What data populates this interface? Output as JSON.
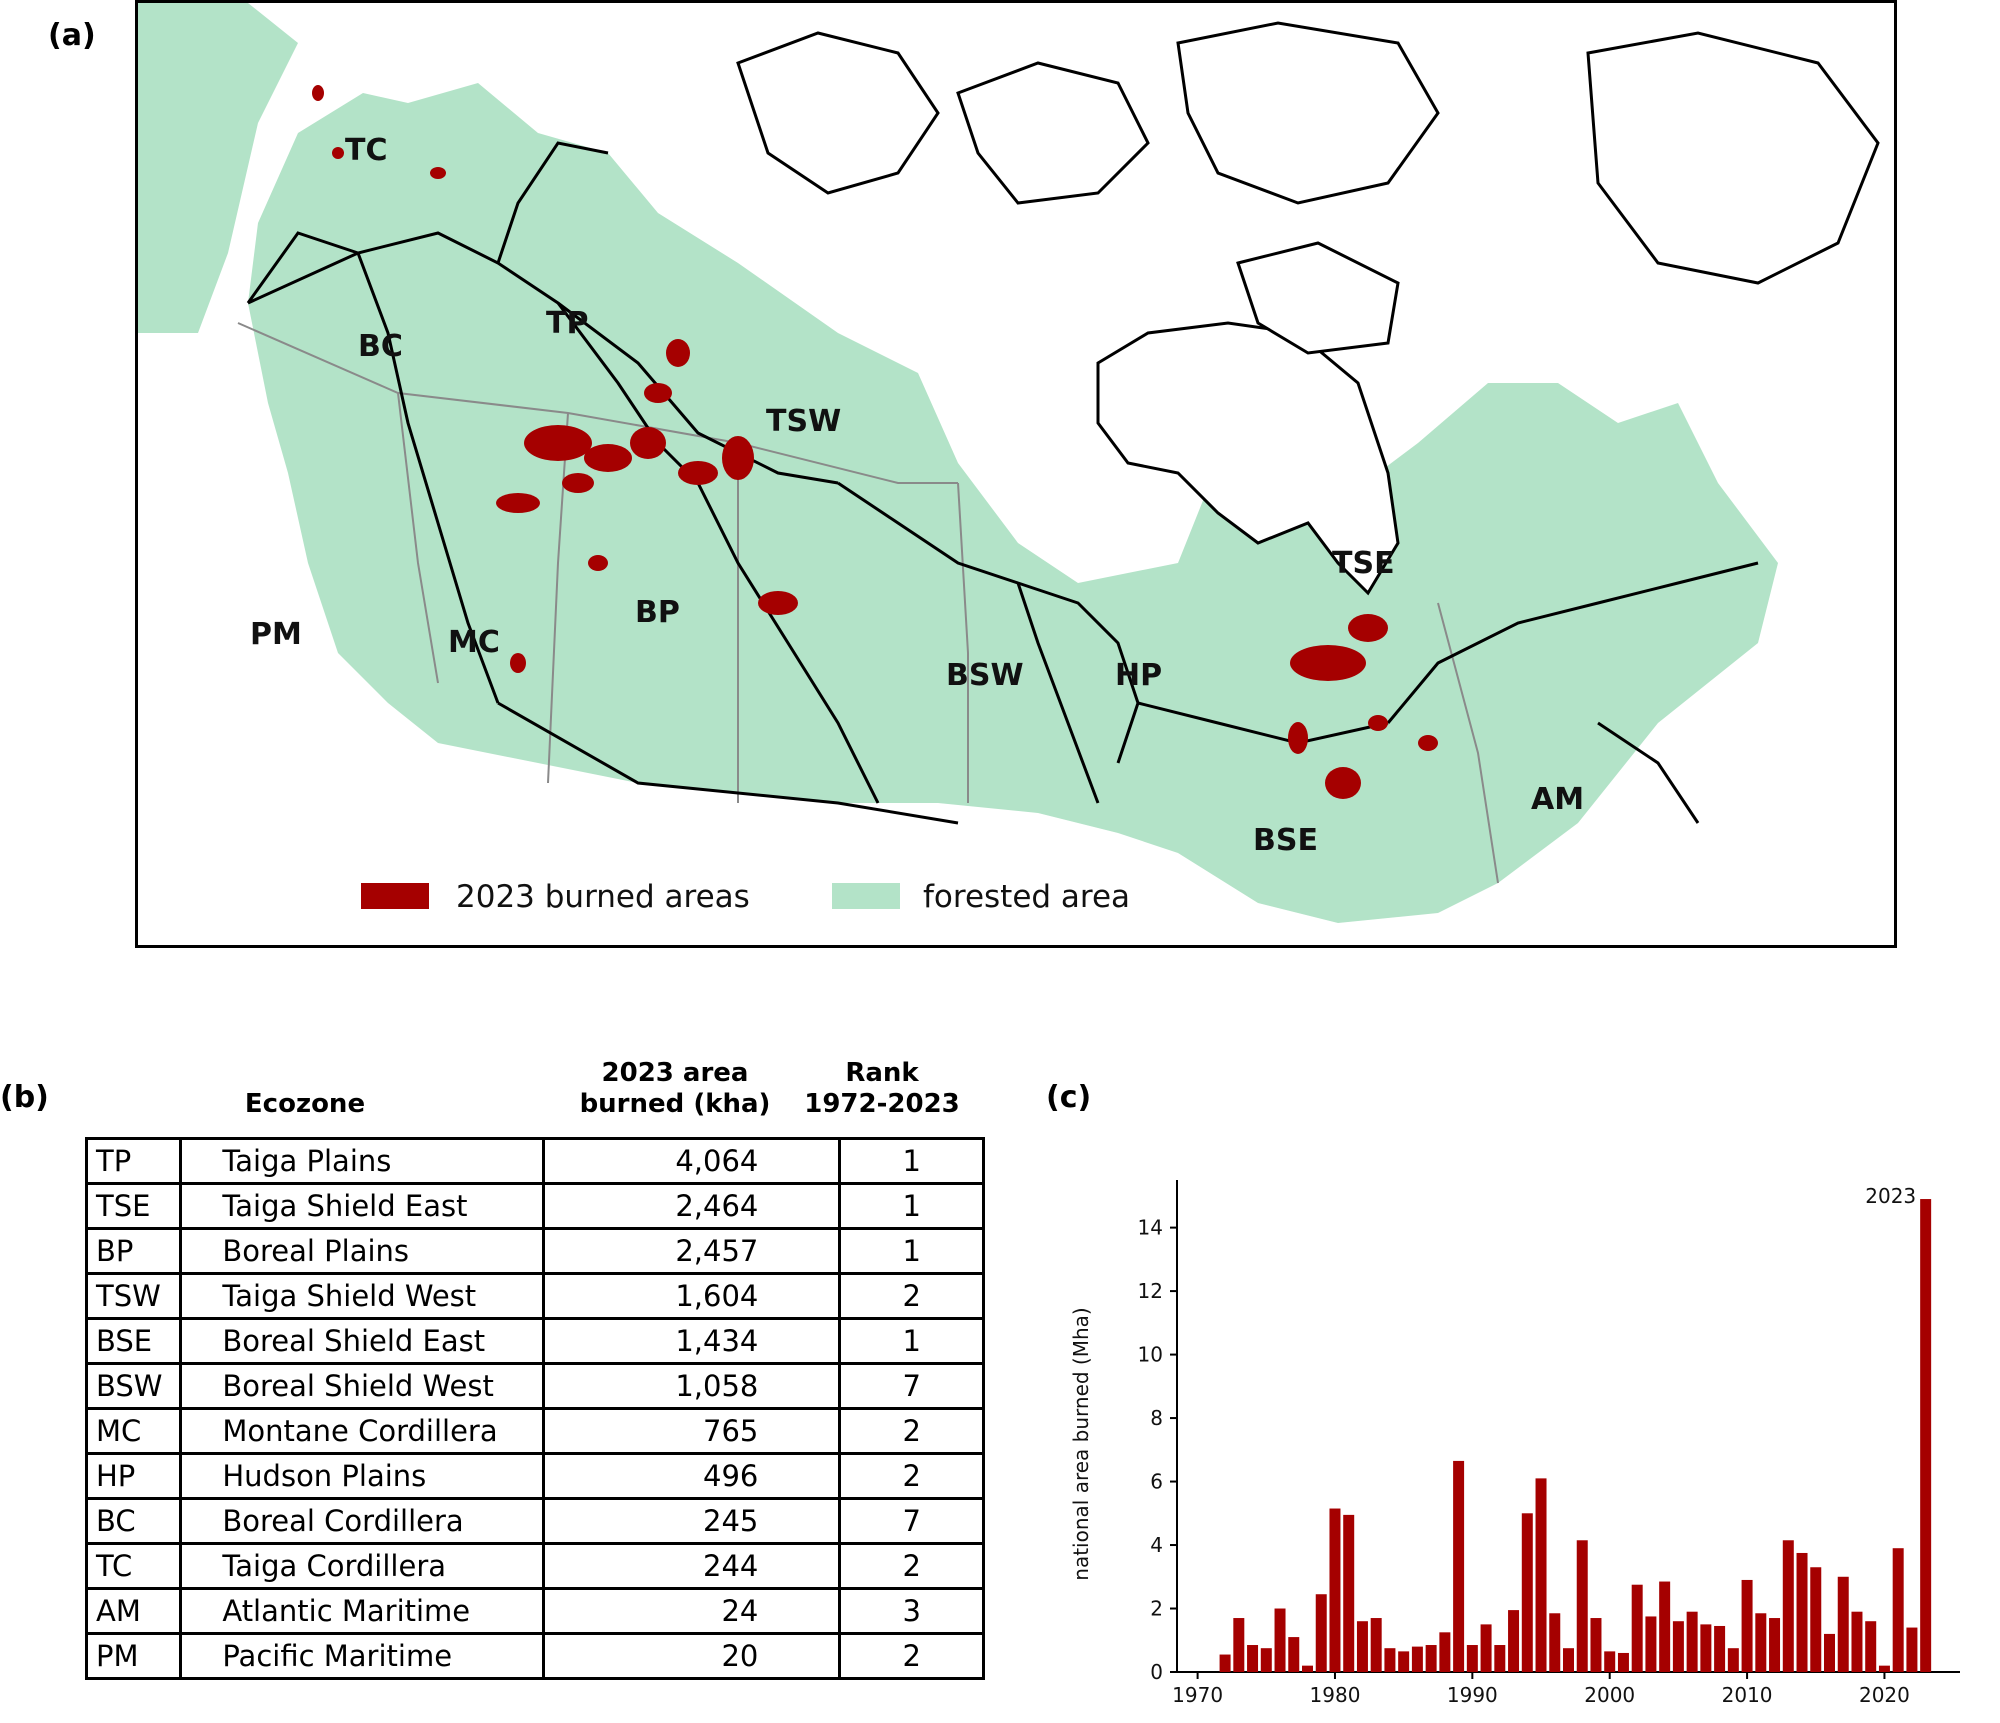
{
  "panels": {
    "a": "(a)",
    "b": "(b)",
    "c": "(c)"
  },
  "map": {
    "zone_labels": [
      "TC",
      "BC",
      "TP",
      "TSW",
      "BP",
      "MC",
      "PM",
      "BSW",
      "HP",
      "TSE",
      "BSE",
      "AM"
    ],
    "legend": {
      "burned": {
        "label": "2023 burned areas",
        "color": "#a50000"
      },
      "forest": {
        "label": "forested area",
        "color": "#b3e3c8"
      }
    }
  },
  "table": {
    "headers": {
      "ecozone": "Ecozone",
      "area": "2023 area\nburned (kha)",
      "rank": "Rank\n1972-2023"
    },
    "rows": [
      {
        "abbr": "TP",
        "name": "Taiga Plains",
        "area": "4,064",
        "rank": "1"
      },
      {
        "abbr": "TSE",
        "name": "Taiga Shield East",
        "area": "2,464",
        "rank": "1"
      },
      {
        "abbr": "BP",
        "name": "Boreal Plains",
        "area": "2,457",
        "rank": "1"
      },
      {
        "abbr": "TSW",
        "name": "Taiga Shield West",
        "area": "1,604",
        "rank": "2"
      },
      {
        "abbr": "BSE",
        "name": "Boreal Shield East",
        "area": "1,434",
        "rank": "1"
      },
      {
        "abbr": "BSW",
        "name": "Boreal Shield West",
        "area": "1,058",
        "rank": "7"
      },
      {
        "abbr": "MC",
        "name": "Montane Cordillera",
        "area": "765",
        "rank": "2"
      },
      {
        "abbr": "HP",
        "name": "Hudson Plains",
        "area": "496",
        "rank": "2"
      },
      {
        "abbr": "BC",
        "name": "Boreal Cordillera",
        "area": "245",
        "rank": "7"
      },
      {
        "abbr": "TC",
        "name": "Taiga Cordillera",
        "area": "244",
        "rank": "2"
      },
      {
        "abbr": "AM",
        "name": "Atlantic Maritime",
        "area": "24",
        "rank": "3"
      },
      {
        "abbr": "PM",
        "name": "Pacific Maritime",
        "area": "20",
        "rank": "2"
      }
    ]
  },
  "chart_data": {
    "type": "bar",
    "ylabel": "national area burned (Mha)",
    "xlabel": "",
    "ylim": [
      0,
      15.5
    ],
    "xlim": [
      1968.5,
      2025.5
    ],
    "yticks": [
      0,
      2,
      4,
      6,
      8,
      10,
      12,
      14
    ],
    "xticks": [
      1970,
      1980,
      1990,
      2000,
      2010,
      2020
    ],
    "bar_color": "#a50000",
    "annotation": "2023",
    "x": [
      1972,
      1973,
      1974,
      1975,
      1976,
      1977,
      1978,
      1979,
      1980,
      1981,
      1982,
      1983,
      1984,
      1985,
      1986,
      1987,
      1988,
      1989,
      1990,
      1991,
      1992,
      1993,
      1994,
      1995,
      1996,
      1997,
      1998,
      1999,
      2000,
      2001,
      2002,
      2003,
      2004,
      2005,
      2006,
      2007,
      2008,
      2009,
      2010,
      2011,
      2012,
      2013,
      2014,
      2015,
      2016,
      2017,
      2018,
      2019,
      2020,
      2021,
      2022,
      2023
    ],
    "values": [
      0.55,
      1.7,
      0.85,
      0.75,
      2.0,
      1.1,
      0.2,
      2.45,
      5.15,
      4.95,
      1.6,
      1.7,
      0.75,
      0.65,
      0.8,
      0.85,
      1.25,
      6.65,
      0.85,
      1.5,
      0.85,
      1.95,
      5.0,
      6.1,
      1.85,
      0.75,
      4.15,
      1.7,
      0.65,
      0.6,
      2.75,
      1.75,
      2.85,
      1.6,
      1.9,
      1.5,
      1.45,
      0.75,
      2.9,
      1.85,
      1.7,
      4.15,
      3.75,
      3.3,
      1.2,
      3.0,
      1.9,
      1.6,
      0.2,
      3.9,
      1.4,
      14.9
    ]
  }
}
